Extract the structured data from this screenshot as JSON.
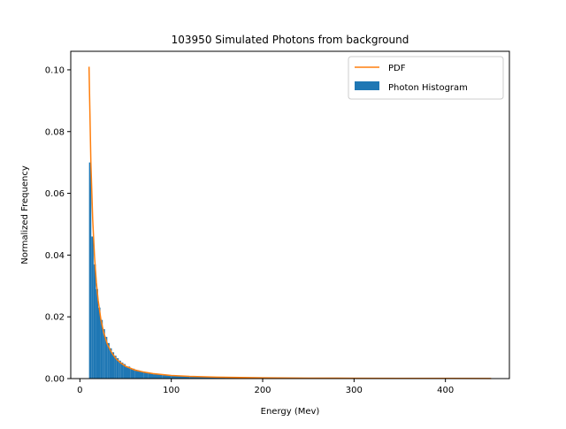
{
  "colors": {
    "histogram": "#1f77b4",
    "pdf": "#ff7f0e",
    "axes": "#000000",
    "legend_border": "#cccccc"
  },
  "chart_data": {
    "type": "bar",
    "title": "103950 Simulated Photons from background",
    "xlabel": "Energy (Mev)",
    "ylabel": "Normalized Frequency",
    "xlim": [
      -10,
      470
    ],
    "ylim": [
      0,
      0.106
    ],
    "xticks": [
      0,
      100,
      200,
      300,
      400
    ],
    "xtick_labels": [
      "0",
      "100",
      "200",
      "300",
      "400"
    ],
    "yticks": [
      0.0,
      0.02,
      0.04,
      0.06,
      0.08,
      0.1
    ],
    "ytick_labels": [
      "0.00",
      "0.02",
      "0.04",
      "0.06",
      "0.08",
      "0.10"
    ],
    "grid": false,
    "legend_position": "upper right",
    "series": [
      {
        "name": "PDF",
        "kind": "line",
        "x": [
          10,
          12,
          14,
          16,
          18,
          20,
          23,
          26,
          30,
          35,
          40,
          45,
          50,
          60,
          70,
          80,
          100,
          120,
          150,
          200,
          250,
          300,
          350,
          400,
          450
        ],
        "y": [
          0.101,
          0.0702,
          0.0516,
          0.0395,
          0.0312,
          0.0253,
          0.0191,
          0.015,
          0.0112,
          0.0083,
          0.0063,
          0.005,
          0.004,
          0.0028,
          0.0021,
          0.0016,
          0.001,
          0.0007,
          0.00045,
          0.00025,
          0.00016,
          0.00011,
          8e-05,
          6e-05,
          5e-05
        ]
      },
      {
        "name": "Photon Histogram",
        "kind": "histogram",
        "bin_width": 2.5,
        "bins_start": [
          10,
          12.5,
          15,
          17.5,
          20,
          22.5,
          25,
          27.5,
          30,
          32.5,
          35,
          37.5,
          40,
          42.5,
          45,
          47.5,
          50,
          55,
          60,
          65,
          70,
          75,
          80,
          90,
          100,
          110,
          120,
          140,
          160,
          180,
          200,
          230,
          260,
          300,
          350,
          400
        ],
        "bins_width": [
          2.5,
          2.5,
          2.5,
          2.5,
          2.5,
          2.5,
          2.5,
          2.5,
          2.5,
          2.5,
          2.5,
          2.5,
          2.5,
          2.5,
          2.5,
          2.5,
          5,
          5,
          5,
          5,
          5,
          5,
          10,
          10,
          10,
          10,
          20,
          20,
          20,
          20,
          30,
          30,
          40,
          50,
          50,
          50
        ],
        "values": [
          0.07,
          0.046,
          0.037,
          0.029,
          0.023,
          0.019,
          0.016,
          0.0135,
          0.0115,
          0.0098,
          0.0085,
          0.0074,
          0.0066,
          0.0058,
          0.0052,
          0.0047,
          0.0039,
          0.0032,
          0.0027,
          0.0023,
          0.002,
          0.0017,
          0.0014,
          0.0011,
          0.0009,
          0.00075,
          0.00055,
          0.00042,
          0.00033,
          0.00027,
          0.0002,
          0.00016,
          0.00012,
          9e-05,
          7e-05,
          5e-05
        ]
      }
    ]
  }
}
